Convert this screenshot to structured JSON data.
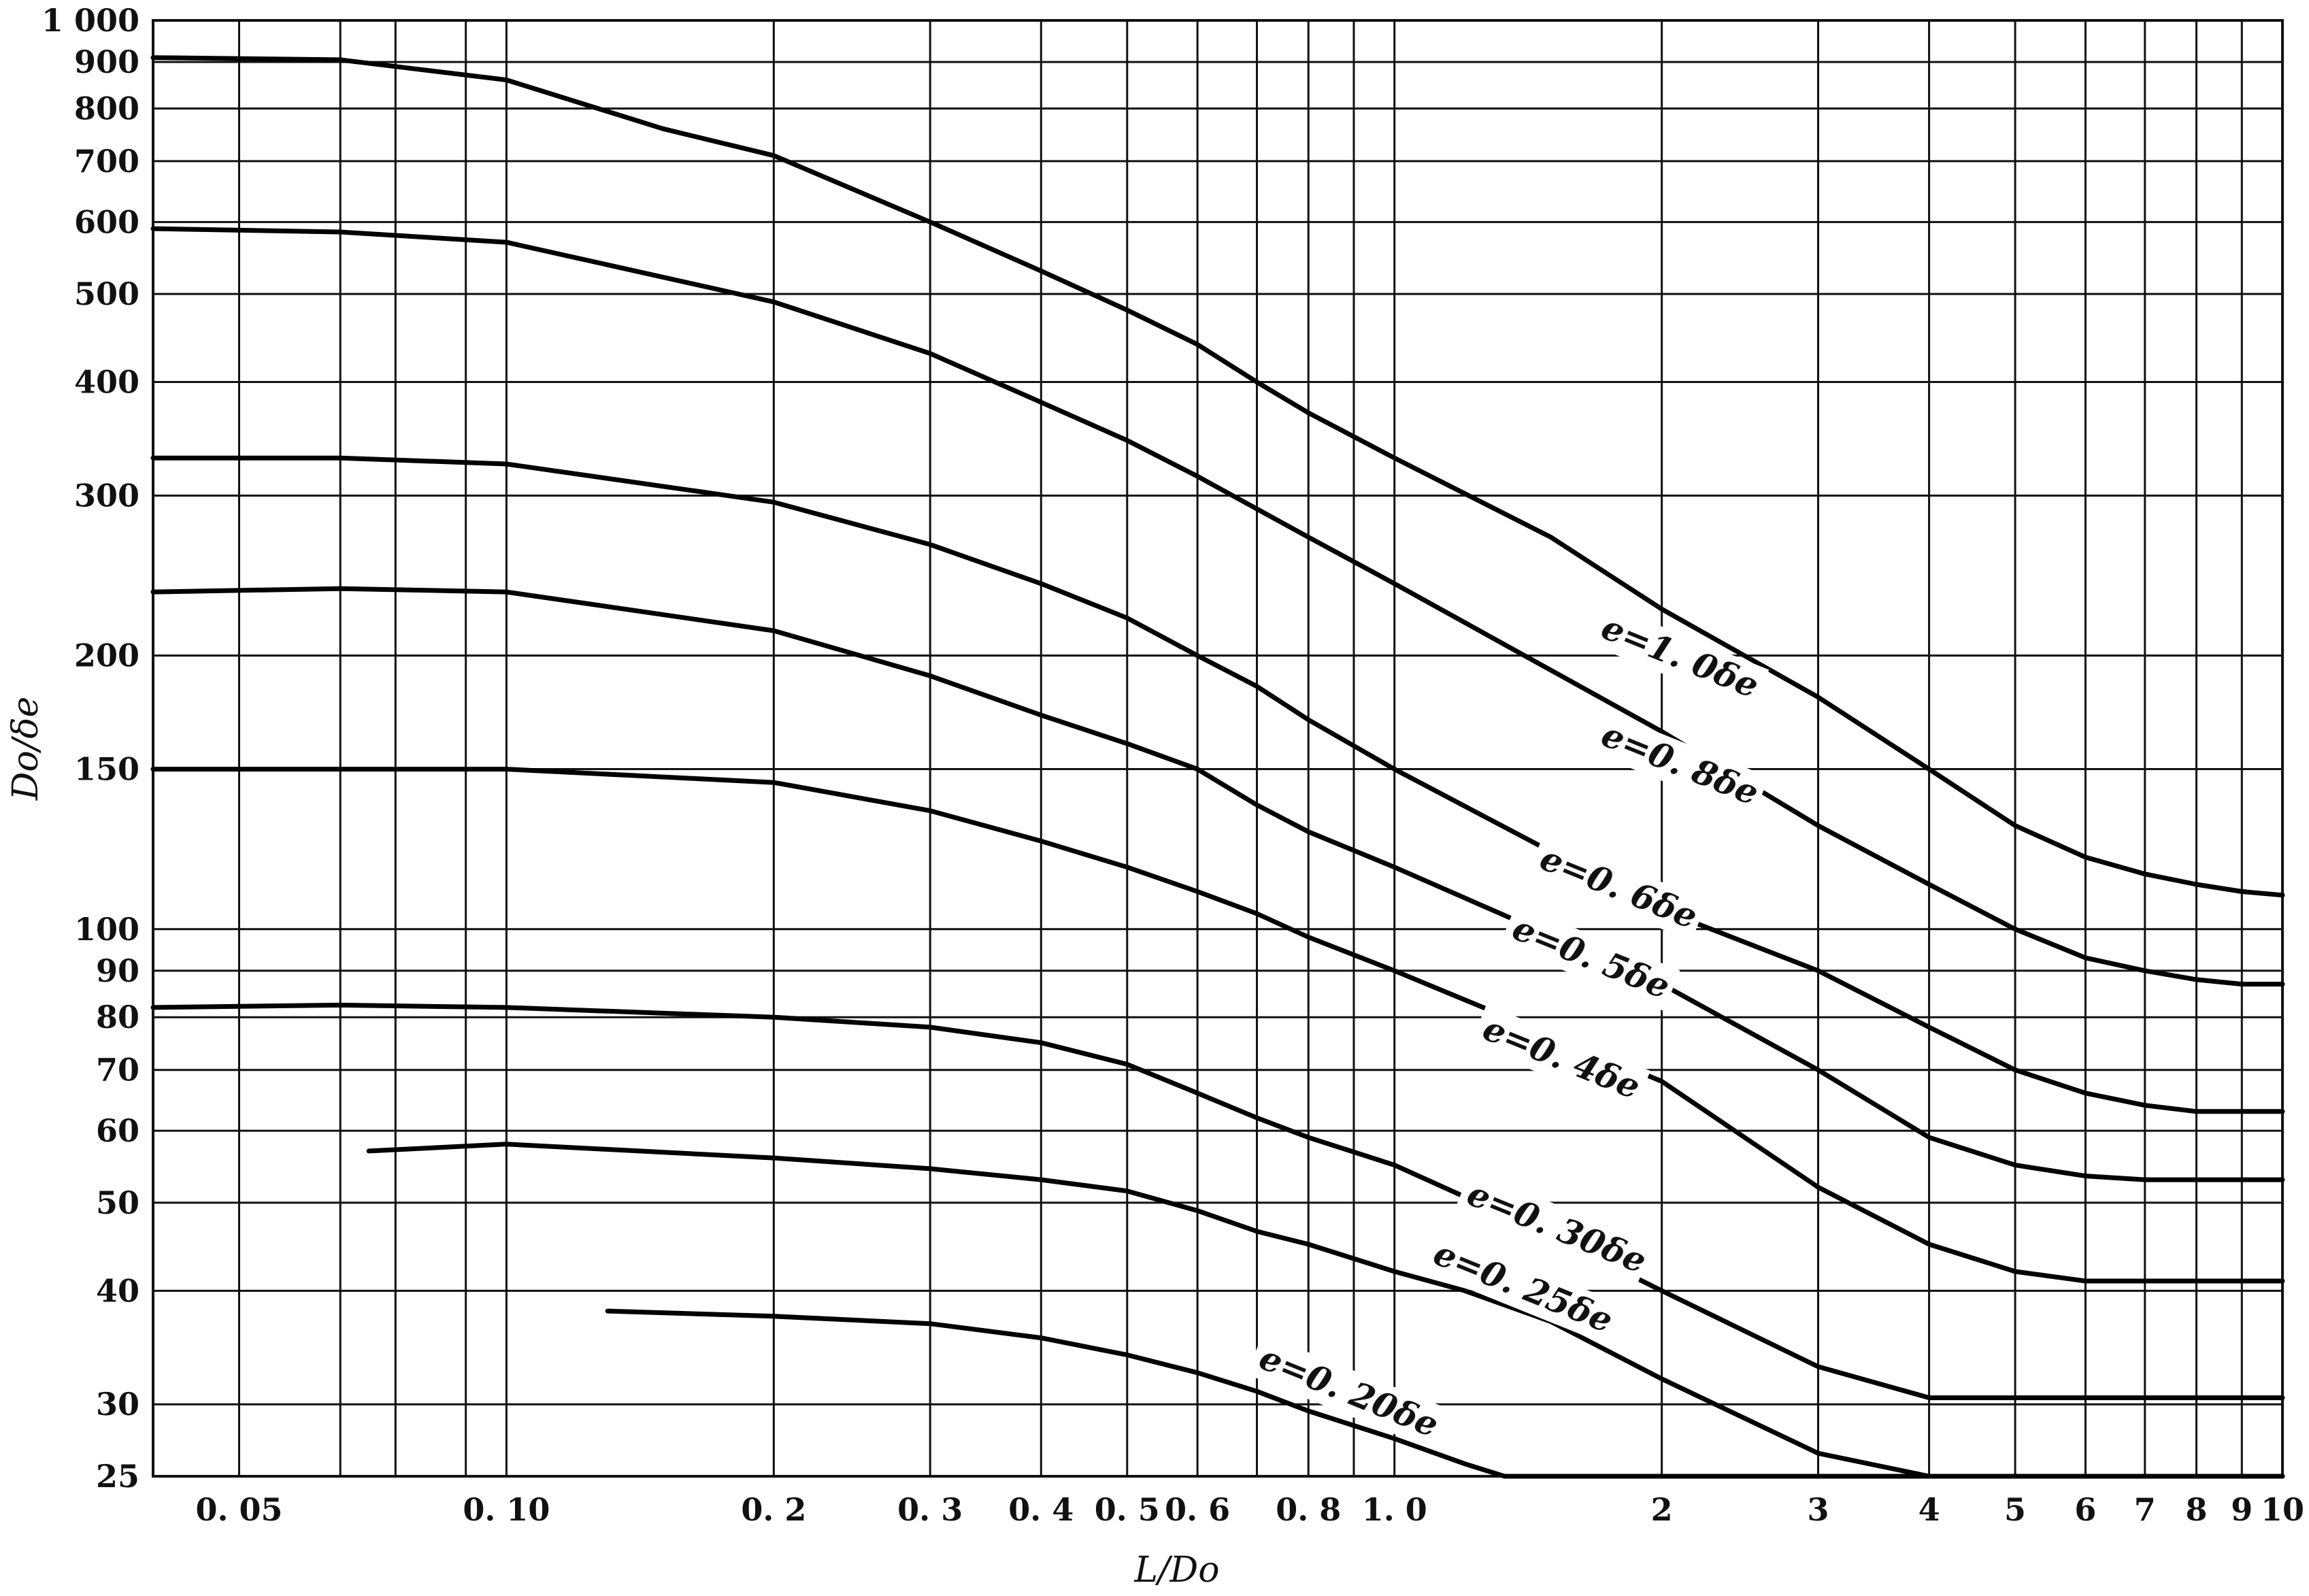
{
  "chart_data": {
    "type": "line",
    "title": "",
    "xlabel": "L/Do",
    "ylabel": "Do/δe",
    "x_scale": "log",
    "y_scale": "log",
    "xlim": [
      0.04,
      10
    ],
    "ylim": [
      25,
      1000
    ],
    "grid": true,
    "x_ticks": [
      {
        "value": 0.05,
        "label": "0. 05"
      },
      {
        "value": 0.1,
        "label": "0. 10"
      },
      {
        "value": 0.2,
        "label": "0. 2"
      },
      {
        "value": 0.3,
        "label": "0. 3"
      },
      {
        "value": 0.4,
        "label": "0. 4"
      },
      {
        "value": 0.5,
        "label": "0. 5"
      },
      {
        "value": 0.6,
        "label": "0. 6"
      },
      {
        "value": 0.8,
        "label": "0. 8"
      },
      {
        "value": 1.0,
        "label": "1. 0"
      },
      {
        "value": 2,
        "label": "2"
      },
      {
        "value": 3,
        "label": "3"
      },
      {
        "value": 4,
        "label": "4"
      },
      {
        "value": 5,
        "label": "5"
      },
      {
        "value": 6,
        "label": "6"
      },
      {
        "value": 7,
        "label": "7"
      },
      {
        "value": 8,
        "label": "8"
      },
      {
        "value": 9,
        "label": "9"
      },
      {
        "value": 10,
        "label": "10"
      }
    ],
    "y_ticks": [
      {
        "value": 25,
        "label": "25"
      },
      {
        "value": 30,
        "label": "30"
      },
      {
        "value": 40,
        "label": "40"
      },
      {
        "value": 50,
        "label": "50"
      },
      {
        "value": 60,
        "label": "60"
      },
      {
        "value": 70,
        "label": "70"
      },
      {
        "value": 80,
        "label": "80"
      },
      {
        "value": 90,
        "label": "90"
      },
      {
        "value": 100,
        "label": "100"
      },
      {
        "value": 150,
        "label": "150"
      },
      {
        "value": 200,
        "label": "200"
      },
      {
        "value": 300,
        "label": "300"
      },
      {
        "value": 400,
        "label": "400"
      },
      {
        "value": 500,
        "label": "500"
      },
      {
        "value": 600,
        "label": "600"
      },
      {
        "value": 700,
        "label": "700"
      },
      {
        "value": 800,
        "label": "800"
      },
      {
        "value": 900,
        "label": "900"
      },
      {
        "value": 1000,
        "label": "1 000"
      }
    ],
    "x_gridlines": [
      0.05,
      0.065,
      0.075,
      0.09,
      0.1,
      0.2,
      0.3,
      0.4,
      0.5,
      0.6,
      0.7,
      0.8,
      0.9,
      1.0,
      2,
      3,
      4,
      5,
      6,
      7,
      8,
      9
    ],
    "y_gridlines": [
      30,
      40,
      50,
      60,
      70,
      80,
      90,
      100,
      150,
      200,
      300,
      400,
      500,
      600,
      700,
      800,
      900
    ],
    "series": [
      {
        "name": "e=1. 0δe",
        "label_at": [
          1.7,
          210
        ],
        "x": [
          0.04,
          0.065,
          0.1,
          0.15,
          0.2,
          0.3,
          0.4,
          0.5,
          0.6,
          0.7,
          0.8,
          1.0,
          1.5,
          2,
          3,
          4,
          5,
          6,
          7,
          8,
          9,
          10
        ],
        "y": [
          910,
          905,
          860,
          760,
          710,
          600,
          530,
          480,
          440,
          400,
          370,
          330,
          270,
          225,
          180,
          150,
          130,
          120,
          115,
          112,
          110,
          109
        ]
      },
      {
        "name": "e=0. 8δe",
        "label_at": [
          1.7,
          160
        ],
        "x": [
          0.04,
          0.065,
          0.1,
          0.2,
          0.3,
          0.4,
          0.5,
          0.6,
          0.7,
          0.8,
          1.0,
          2,
          3,
          4,
          5,
          6,
          7,
          8,
          9,
          10
        ],
        "y": [
          590,
          585,
          570,
          490,
          430,
          380,
          345,
          315,
          290,
          270,
          240,
          165,
          130,
          112,
          100,
          93,
          90,
          88,
          87,
          87
        ]
      },
      {
        "name": "e=0. 6δe",
        "label_at": [
          1.45,
          117
        ],
        "x": [
          0.04,
          0.065,
          0.1,
          0.2,
          0.3,
          0.4,
          0.5,
          0.6,
          0.7,
          0.8,
          1.0,
          2,
          3,
          4,
          5,
          6,
          7,
          8,
          9,
          10
        ],
        "y": [
          330,
          330,
          325,
          295,
          265,
          240,
          220,
          200,
          185,
          170,
          150,
          105,
          90,
          78,
          70,
          66,
          64,
          63,
          63,
          63
        ]
      },
      {
        "name": "e=0. 5δe",
        "label_at": [
          1.35,
          98
        ],
        "x": [
          0.04,
          0.065,
          0.1,
          0.2,
          0.3,
          0.4,
          0.5,
          0.6,
          0.7,
          0.8,
          1.0,
          2,
          3,
          4,
          5,
          6,
          7,
          8,
          9,
          10
        ],
        "y": [
          235,
          237,
          235,
          213,
          190,
          172,
          160,
          150,
          137,
          128,
          117,
          87,
          70,
          59,
          55,
          53.5,
          53,
          53,
          53,
          53
        ]
      },
      {
        "name": "e=0. 4δe",
        "label_at": [
          1.25,
          76
        ],
        "x": [
          0.04,
          0.065,
          0.1,
          0.2,
          0.3,
          0.4,
          0.5,
          0.6,
          0.7,
          0.8,
          1.0,
          2,
          3,
          4,
          5,
          6,
          7,
          8,
          9,
          10
        ],
        "y": [
          150,
          150,
          150,
          145,
          135,
          125,
          117,
          110,
          104,
          98,
          90,
          68,
          52,
          45,
          42,
          41,
          41,
          41,
          41,
          41
        ]
      },
      {
        "name": "e=0. 30δe",
        "label_at": [
          1.2,
          50
        ],
        "x": [
          0.04,
          0.065,
          0.1,
          0.2,
          0.3,
          0.4,
          0.5,
          0.6,
          0.7,
          0.8,
          1.0,
          1.5,
          2,
          3,
          4,
          5,
          6,
          8,
          10
        ],
        "y": [
          82,
          82.5,
          82,
          80,
          78,
          75,
          71,
          66,
          62,
          59,
          55,
          46,
          40,
          33,
          30.5,
          30.5,
          30.5,
          30.5,
          30.5
        ]
      },
      {
        "name": "e=0. 25δe",
        "label_at": [
          1.1,
          43
        ],
        "x": [
          0.07,
          0.1,
          0.2,
          0.3,
          0.4,
          0.5,
          0.6,
          0.7,
          0.8,
          1.0,
          1.2,
          1.5,
          2,
          3,
          4,
          5,
          6,
          8,
          10
        ],
        "y": [
          57,
          58,
          56,
          54.5,
          53,
          51.5,
          49,
          46.5,
          45,
          42,
          40,
          37,
          32,
          26.5,
          25,
          25,
          25,
          25,
          25
        ]
      },
      {
        "name": "e=0. 20δe",
        "label_at": [
          0.7,
          33
        ],
        "x": [
          0.13,
          0.2,
          0.3,
          0.4,
          0.5,
          0.6,
          0.7,
          0.8,
          1.0,
          1.2,
          1.33,
          2,
          4,
          10
        ],
        "y": [
          38,
          37.5,
          36.8,
          35.5,
          34,
          32.5,
          31,
          29.5,
          27.5,
          25.8,
          25,
          25,
          25,
          25
        ]
      }
    ]
  }
}
